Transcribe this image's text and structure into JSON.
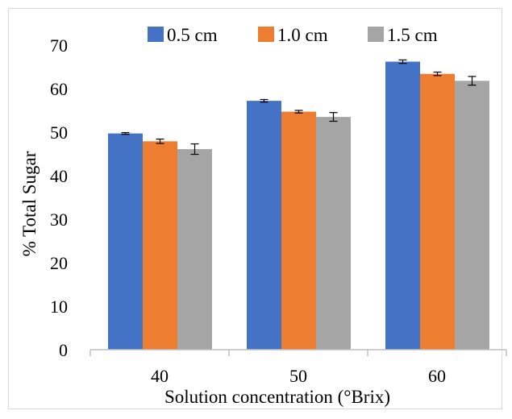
{
  "chart_data": {
    "type": "bar",
    "title": "",
    "xlabel": "Solution concentration (°Brix)",
    "ylabel": "% Total Sugar",
    "categories": [
      "40",
      "50",
      "60"
    ],
    "ylim": [
      0,
      70
    ],
    "yticks": [
      "0",
      "10",
      "20",
      "30",
      "40",
      "50",
      "60",
      "70"
    ],
    "grid": false,
    "legend_position": "top",
    "series": [
      {
        "name": "0.5 cm",
        "color": "#4472c4",
        "values": [
          49.7,
          57.2,
          66.2
        ],
        "errors": [
          0.2,
          0.3,
          0.4
        ]
      },
      {
        "name": "1.0 cm",
        "color": "#ed7d31",
        "values": [
          47.9,
          54.7,
          63.4
        ],
        "errors": [
          0.5,
          0.3,
          0.4
        ]
      },
      {
        "name": "1.5 cm",
        "color": "#a5a5a5",
        "values": [
          46.1,
          53.5,
          61.8
        ],
        "errors": [
          1.2,
          1.0,
          1.0
        ]
      }
    ]
  }
}
